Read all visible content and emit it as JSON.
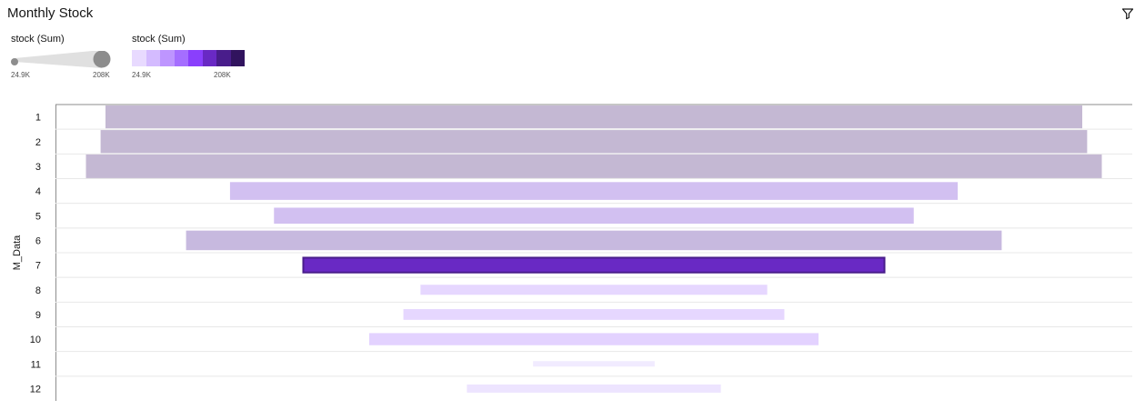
{
  "title": "Monthly Stock",
  "icons": {
    "filter": "filter-icon"
  },
  "legend_size": {
    "title": "stock (Sum)",
    "min_label": "24.9K",
    "max_label": "208K"
  },
  "legend_color": {
    "title": "stock (Sum)",
    "min_label": "24.9K",
    "max_label": "208K",
    "swatches": [
      "#e8daff",
      "#d4bbff",
      "#be95ff",
      "#a56eff",
      "#8a3ffc",
      "#6929c4",
      "#491d8b",
      "#31135e"
    ]
  },
  "chart_data": {
    "type": "bar",
    "orientation": "horizontal-centered",
    "y_axis_title": "M_Data",
    "categories": [
      "1",
      "2",
      "3",
      "4",
      "5",
      "6",
      "7",
      "8",
      "9",
      "10",
      "11",
      "12"
    ],
    "series": [
      {
        "values": [
          200000,
          202000,
          208000,
          149000,
          131000,
          167000,
          119000,
          71000,
          78000,
          92000,
          24900,
          52000
        ],
        "colors": [
          "#c4b8d3",
          "#c4b8d3",
          "#c4b8d3",
          "#d2c0f1",
          "#d2c0f1",
          "#c7b9df",
          "#6929c4",
          "#e6d7ff",
          "#e6d7ff",
          "#e3d2ff",
          "#f1ebff",
          "#ede4ff"
        ]
      }
    ],
    "selected_category": "7",
    "grid": true,
    "legend_position": "top-left"
  }
}
